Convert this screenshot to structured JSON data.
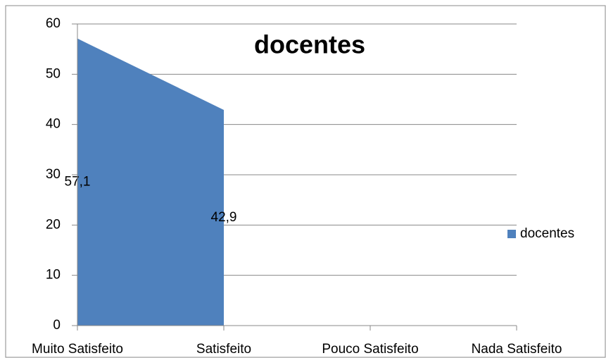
{
  "chart_data": {
    "type": "area",
    "title": "docentes",
    "categories": [
      "Muito Satisfeito",
      "Satisfeito",
      "Pouco Satisfeito",
      "Nada Satisfeito"
    ],
    "series": [
      {
        "name": "docentes",
        "color": "#4f81bd",
        "values": [
          57.1,
          42.9,
          null,
          null
        ],
        "value_labels": [
          "57,1",
          "42,9",
          null,
          null
        ]
      }
    ],
    "ylim": [
      0,
      60
    ],
    "yticks": [
      0,
      10,
      20,
      30,
      40,
      50,
      60
    ],
    "grid": true,
    "legend": "right"
  }
}
